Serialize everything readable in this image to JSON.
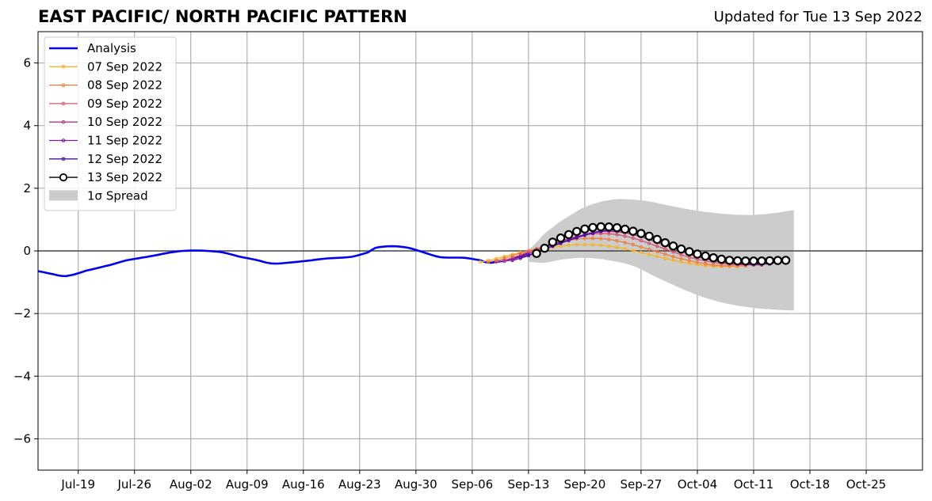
{
  "header": {
    "title": "EAST PACIFIC/ NORTH PACIFIC PATTERN",
    "updated": "Updated for Tue 13 Sep 2022"
  },
  "chart_data": {
    "type": "line",
    "title": "EAST PACIFIC/ NORTH PACIFIC PATTERN",
    "subtitle": "Updated for Tue 13 Sep 2022",
    "xlim": [
      "2022-07-14",
      "2022-11-01"
    ],
    "ylim": [
      -7,
      7
    ],
    "yticks": [
      -6,
      -4,
      -2,
      0,
      2,
      4,
      6
    ],
    "ytick_labels": [
      "−6",
      "−4",
      "−2",
      "0",
      "2",
      "4",
      "6"
    ],
    "xticks": [
      "2022-07-19",
      "2022-07-26",
      "2022-08-02",
      "2022-08-09",
      "2022-08-16",
      "2022-08-23",
      "2022-08-30",
      "2022-09-06",
      "2022-09-13",
      "2022-09-20",
      "2022-09-27",
      "2022-10-04",
      "2022-10-11",
      "2022-10-18",
      "2022-10-25"
    ],
    "xtick_labels": [
      "Jul-19",
      "Jul-26",
      "Aug-02",
      "Aug-09",
      "Aug-16",
      "Aug-23",
      "Aug-30",
      "Sep-06",
      "Sep-13",
      "Sep-20",
      "Sep-27",
      "Oct-04",
      "Oct-11",
      "Oct-18",
      "Oct-25"
    ],
    "grid": true,
    "legend_position": "upper-left",
    "zero_line": true,
    "analysis": {
      "name": "Analysis",
      "color": "#0000ee",
      "points": [
        [
          "2022-07-14",
          -0.65
        ],
        [
          "2022-07-16",
          -0.75
        ],
        [
          "2022-07-17",
          -0.8
        ],
        [
          "2022-07-18",
          -0.78
        ],
        [
          "2022-07-20",
          -0.63
        ],
        [
          "2022-07-23",
          -0.45
        ],
        [
          "2022-07-25",
          -0.3
        ],
        [
          "2022-07-28",
          -0.17
        ],
        [
          "2022-07-31",
          -0.03
        ],
        [
          "2022-08-02",
          0.01
        ],
        [
          "2022-08-04",
          0.0
        ],
        [
          "2022-08-06",
          -0.05
        ],
        [
          "2022-08-08",
          -0.18
        ],
        [
          "2022-08-10",
          -0.28
        ],
        [
          "2022-08-12",
          -0.4
        ],
        [
          "2022-08-14",
          -0.38
        ],
        [
          "2022-08-17",
          -0.3
        ],
        [
          "2022-08-19",
          -0.24
        ],
        [
          "2022-08-22",
          -0.19
        ],
        [
          "2022-08-24",
          -0.05
        ],
        [
          "2022-08-25",
          0.1
        ],
        [
          "2022-08-27",
          0.15
        ],
        [
          "2022-08-29",
          0.1
        ],
        [
          "2022-08-31",
          -0.05
        ],
        [
          "2022-09-02",
          -0.2
        ],
        [
          "2022-09-05",
          -0.22
        ],
        [
          "2022-09-07",
          -0.3
        ],
        [
          "2022-09-08",
          -0.38
        ],
        [
          "2022-09-09",
          -0.35
        ],
        [
          "2022-09-11",
          -0.27
        ],
        [
          "2022-09-12",
          -0.16
        ],
        [
          "2022-09-13",
          -0.05
        ]
      ]
    },
    "spread": {
      "name": "1σ Spread",
      "color": "#cccccc",
      "upper": [
        [
          "2022-09-13",
          0.05
        ],
        [
          "2022-09-15",
          0.55
        ],
        [
          "2022-09-17",
          0.95
        ],
        [
          "2022-09-20",
          1.4
        ],
        [
          "2022-09-23",
          1.62
        ],
        [
          "2022-09-25",
          1.65
        ],
        [
          "2022-09-28",
          1.58
        ],
        [
          "2022-10-01",
          1.42
        ],
        [
          "2022-10-04",
          1.28
        ],
        [
          "2022-10-08",
          1.17
        ],
        [
          "2022-10-11",
          1.15
        ],
        [
          "2022-10-14",
          1.22
        ],
        [
          "2022-10-16",
          1.3
        ]
      ],
      "lower": [
        [
          "2022-09-13",
          -0.35
        ],
        [
          "2022-09-15",
          -0.38
        ],
        [
          "2022-09-17",
          -0.28
        ],
        [
          "2022-09-20",
          -0.22
        ],
        [
          "2022-09-23",
          -0.3
        ],
        [
          "2022-09-26",
          -0.48
        ],
        [
          "2022-09-29",
          -0.85
        ],
        [
          "2022-10-02",
          -1.2
        ],
        [
          "2022-10-05",
          -1.5
        ],
        [
          "2022-10-08",
          -1.7
        ],
        [
          "2022-10-11",
          -1.82
        ],
        [
          "2022-10-14",
          -1.88
        ],
        [
          "2022-10-16",
          -1.9
        ]
      ]
    },
    "forecasts": [
      {
        "name": "07 Sep 2022",
        "color": "#f5b42a",
        "start": "2022-09-07",
        "end": "2022-10-09",
        "anchors": [
          [
            "2022-09-07",
            -0.35
          ],
          [
            "2022-09-12",
            -0.05
          ],
          [
            "2022-09-17",
            0.15
          ],
          [
            "2022-09-20",
            0.2
          ],
          [
            "2022-09-23",
            0.15
          ],
          [
            "2022-09-27",
            -0.05
          ],
          [
            "2022-10-01",
            -0.3
          ],
          [
            "2022-10-05",
            -0.47
          ],
          [
            "2022-10-09",
            -0.5
          ]
        ]
      },
      {
        "name": "08 Sep 2022",
        "color": "#ee7d3e",
        "start": "2022-09-08",
        "end": "2022-10-10",
        "anchors": [
          [
            "2022-09-08",
            -0.35
          ],
          [
            "2022-09-13",
            0.0
          ],
          [
            "2022-09-18",
            0.33
          ],
          [
            "2022-09-21",
            0.4
          ],
          [
            "2022-09-24",
            0.32
          ],
          [
            "2022-09-28",
            0.05
          ],
          [
            "2022-10-02",
            -0.25
          ],
          [
            "2022-10-06",
            -0.45
          ],
          [
            "2022-10-10",
            -0.48
          ]
        ]
      },
      {
        "name": "09 Sep 2022",
        "color": "#d95572",
        "start": "2022-09-09",
        "end": "2022-10-11",
        "anchors": [
          [
            "2022-09-09",
            -0.35
          ],
          [
            "2022-09-14",
            0.05
          ],
          [
            "2022-09-19",
            0.45
          ],
          [
            "2022-09-22",
            0.55
          ],
          [
            "2022-09-25",
            0.47
          ],
          [
            "2022-09-29",
            0.15
          ],
          [
            "2022-10-03",
            -0.2
          ],
          [
            "2022-10-07",
            -0.4
          ],
          [
            "2022-10-11",
            -0.45
          ]
        ]
      },
      {
        "name": "10 Sep 2022",
        "color": "#b0368c",
        "start": "2022-09-10",
        "end": "2022-10-12",
        "anchors": [
          [
            "2022-09-10",
            -0.33
          ],
          [
            "2022-09-15",
            0.1
          ],
          [
            "2022-09-20",
            0.52
          ],
          [
            "2022-09-23",
            0.62
          ],
          [
            "2022-09-26",
            0.52
          ],
          [
            "2022-09-30",
            0.18
          ],
          [
            "2022-10-04",
            -0.18
          ],
          [
            "2022-10-08",
            -0.4
          ],
          [
            "2022-10-12",
            -0.45
          ]
        ]
      },
      {
        "name": "11 Sep 2022",
        "color": "#7d1aa3",
        "start": "2022-09-11",
        "end": "2022-10-13",
        "anchors": [
          [
            "2022-09-11",
            -0.3
          ],
          [
            "2022-09-16",
            0.15
          ],
          [
            "2022-09-21",
            0.58
          ],
          [
            "2022-09-24",
            0.65
          ],
          [
            "2022-09-27",
            0.52
          ],
          [
            "2022-10-01",
            0.15
          ],
          [
            "2022-10-05",
            -0.2
          ],
          [
            "2022-10-09",
            -0.4
          ],
          [
            "2022-10-13",
            -0.42
          ]
        ]
      },
      {
        "name": "12 Sep 2022",
        "color": "#4a0c9e",
        "start": "2022-09-12",
        "end": "2022-10-14",
        "anchors": [
          [
            "2022-09-12",
            -0.2
          ],
          [
            "2022-09-17",
            0.25
          ],
          [
            "2022-09-22",
            0.62
          ],
          [
            "2022-09-25",
            0.65
          ],
          [
            "2022-09-28",
            0.5
          ],
          [
            "2022-10-02",
            0.1
          ],
          [
            "2022-10-06",
            -0.25
          ],
          [
            "2022-10-10",
            -0.4
          ],
          [
            "2022-10-14",
            -0.38
          ]
        ]
      },
      {
        "name": "13 Sep 2022",
        "color": "#000000",
        "marker": "open-circle",
        "start": "2022-09-14",
        "end": "2022-10-15",
        "anchors": [
          [
            "2022-09-14",
            -0.08
          ],
          [
            "2022-09-16",
            0.28
          ],
          [
            "2022-09-18",
            0.52
          ],
          [
            "2022-09-20",
            0.7
          ],
          [
            "2022-09-22",
            0.77
          ],
          [
            "2022-09-24",
            0.74
          ],
          [
            "2022-09-26",
            0.63
          ],
          [
            "2022-09-28",
            0.47
          ],
          [
            "2022-09-30",
            0.26
          ],
          [
            "2022-10-02",
            0.06
          ],
          [
            "2022-10-04",
            -0.1
          ],
          [
            "2022-10-06",
            -0.22
          ],
          [
            "2022-10-08",
            -0.3
          ],
          [
            "2022-10-10",
            -0.32
          ],
          [
            "2022-10-12",
            -0.32
          ],
          [
            "2022-10-15",
            -0.3
          ]
        ]
      }
    ]
  }
}
